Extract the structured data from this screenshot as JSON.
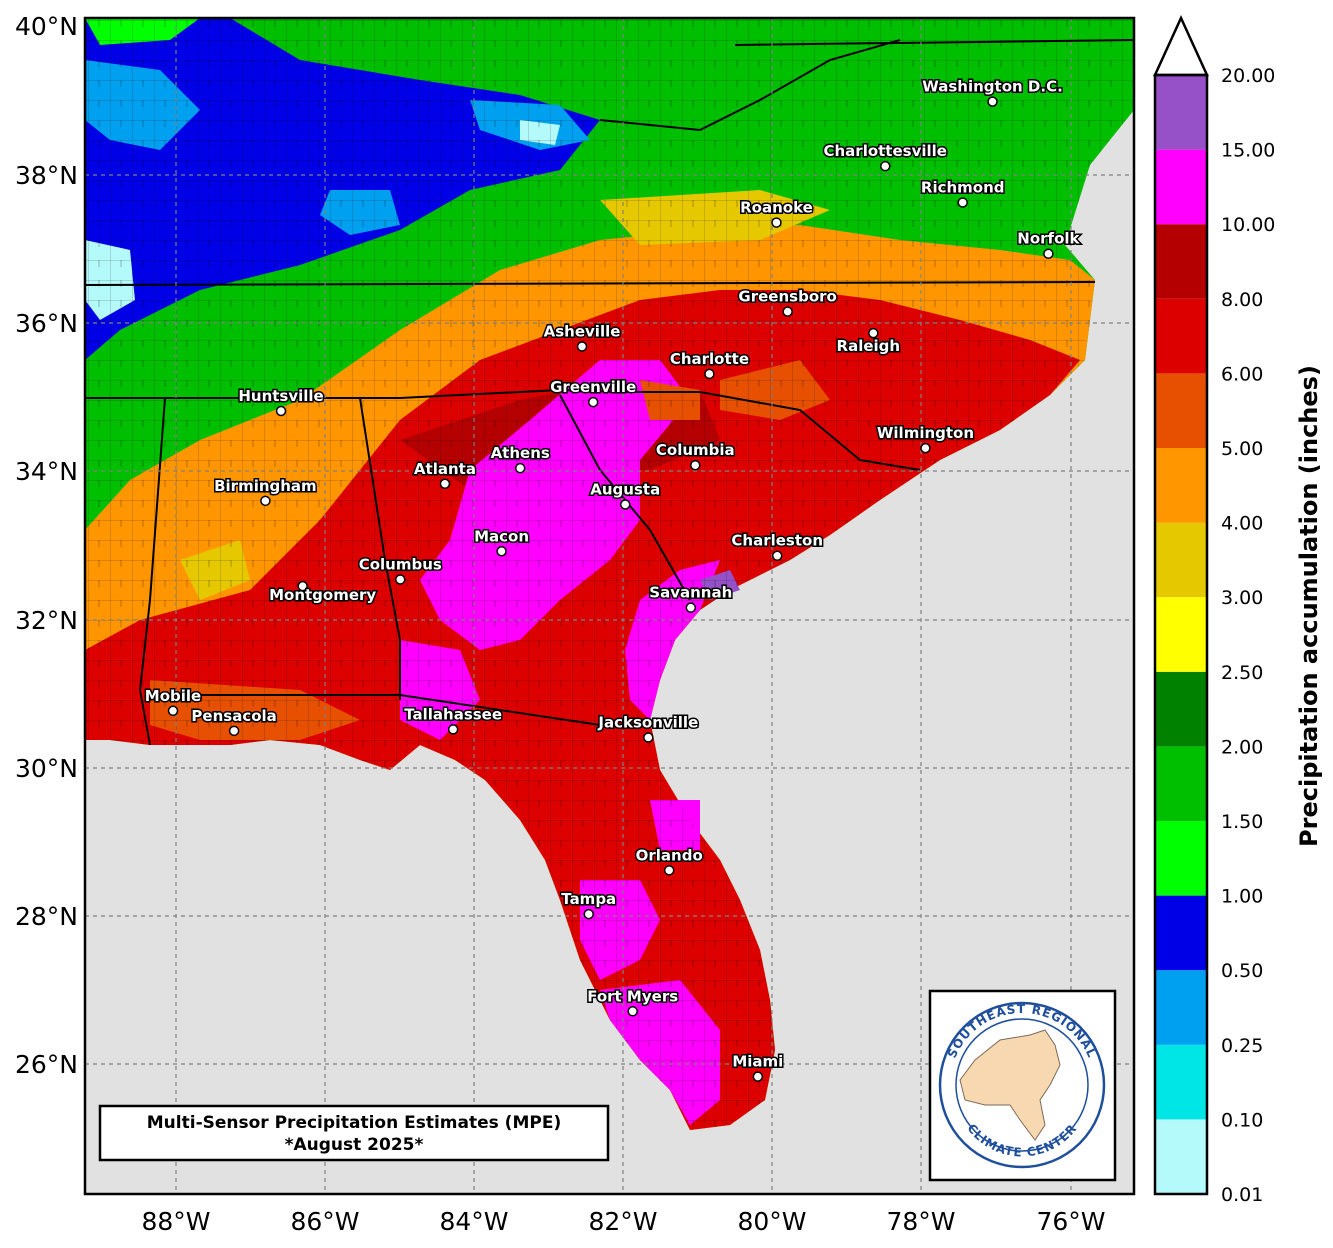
{
  "title": {
    "line1": "Multi-Sensor Precipitation Estimates (MPE)",
    "line2": "*August 2025*"
  },
  "logo": {
    "top_text": "SOUTHEAST REGIONAL",
    "bottom_text": "CLIMATE CENTER"
  },
  "colorbar": {
    "title": "Precipitation accumulation (inches)",
    "levels": [
      "0.01",
      "0.10",
      "0.25",
      "0.50",
      "1.00",
      "1.50",
      "2.00",
      "2.50",
      "3.00",
      "4.00",
      "5.00",
      "6.00",
      "8.00",
      "10.00",
      "15.00",
      "20.00"
    ],
    "colors": [
      "#b4fafa",
      "#00e6e6",
      "#00a0f0",
      "#0000e6",
      "#00ff00",
      "#00be00",
      "#008200",
      "#ffff00",
      "#e6c800",
      "#ff9600",
      "#e65000",
      "#dc0000",
      "#b40000",
      "#ff00ff",
      "#9650c8"
    ],
    "over_color": "#ffffff"
  },
  "axes": {
    "lat_labels": [
      "40°N",
      "38°N",
      "36°N",
      "34°N",
      "32°N",
      "30°N",
      "28°N",
      "26°N"
    ],
    "lon_labels": [
      "88°W",
      "86°W",
      "84°W",
      "82°W",
      "80°W",
      "78°W",
      "76°W"
    ],
    "extent": {
      "lon_min": -89.2,
      "lon_max": -75.0,
      "lat_min": 24.3,
      "lat_max": 40.0
    }
  },
  "colors": {
    "ocean": "#e1e1e1",
    "gridline": "#808080",
    "border": "#000000"
  },
  "cities": [
    {
      "name": "Washington D.C.",
      "lon": -77.04,
      "lat": 38.9
    },
    {
      "name": "Charlottesville",
      "lon": -78.48,
      "lat": 38.03
    },
    {
      "name": "Richmond",
      "lon": -77.44,
      "lat": 37.54
    },
    {
      "name": "Roanoke",
      "lon": -79.94,
      "lat": 37.27
    },
    {
      "name": "Norfolk",
      "lon": -76.29,
      "lat": 36.85
    },
    {
      "name": "Greensboro",
      "lon": -79.79,
      "lat": 36.07
    },
    {
      "name": "Raleigh",
      "lon": -78.64,
      "lat": 35.78
    },
    {
      "name": "Asheville",
      "lon": -82.55,
      "lat": 35.6
    },
    {
      "name": "Charlotte",
      "lon": -80.84,
      "lat": 35.23
    },
    {
      "name": "Greenville",
      "lon": -82.4,
      "lat": 34.85
    },
    {
      "name": "Huntsville",
      "lon": -86.59,
      "lat": 34.73
    },
    {
      "name": "Wilmington",
      "lon": -77.94,
      "lat": 34.23
    },
    {
      "name": "Athens",
      "lon": -83.38,
      "lat": 33.96
    },
    {
      "name": "Columbia",
      "lon": -81.03,
      "lat": 34.0
    },
    {
      "name": "Atlanta",
      "lon": -84.39,
      "lat": 33.75
    },
    {
      "name": "Augusta",
      "lon": -81.97,
      "lat": 33.47
    },
    {
      "name": "Birmingham",
      "lon": -86.8,
      "lat": 33.52
    },
    {
      "name": "Macon",
      "lon": -83.63,
      "lat": 32.84
    },
    {
      "name": "Charleston",
      "lon": -79.93,
      "lat": 32.78
    },
    {
      "name": "Columbus",
      "lon": -84.99,
      "lat": 32.46
    },
    {
      "name": "Montgomery",
      "lon": -86.3,
      "lat": 32.37
    },
    {
      "name": "Savannah",
      "lon": -81.09,
      "lat": 32.08
    },
    {
      "name": "Mobile",
      "lon": -88.04,
      "lat": 30.69
    },
    {
      "name": "Pensacola",
      "lon": -87.22,
      "lat": 30.42
    },
    {
      "name": "Tallahassee",
      "lon": -84.28,
      "lat": 30.44
    },
    {
      "name": "Jacksonville",
      "lon": -81.66,
      "lat": 30.33
    },
    {
      "name": "Orlando",
      "lon": -81.38,
      "lat": 28.54
    },
    {
      "name": "Tampa",
      "lon": -82.46,
      "lat": 27.95
    },
    {
      "name": "Fort Myers",
      "lon": -81.87,
      "lat": 26.64
    },
    {
      "name": "Miami",
      "lon": -80.19,
      "lat": 25.76
    }
  ]
}
